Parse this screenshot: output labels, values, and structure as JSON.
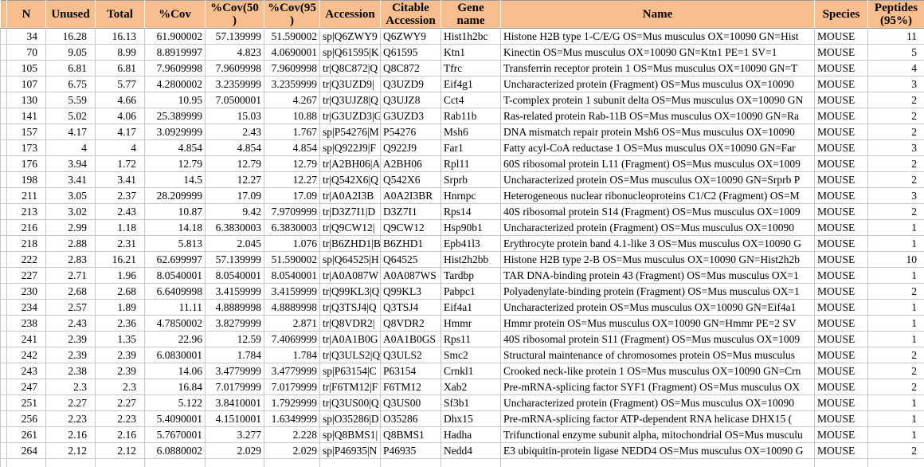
{
  "colors": {
    "header_bg": "#f9be8e",
    "grid": "#c6c6c6",
    "header_border": "#9b9b9b",
    "text": "#000000",
    "row_bg": "#ffffff"
  },
  "table": {
    "columns": [
      {
        "label": "N"
      },
      {
        "label": "Unused"
      },
      {
        "label": "Total"
      },
      {
        "label": "%Cov"
      },
      {
        "label": "%Cov(50)"
      },
      {
        "label": "%Cov(95)"
      },
      {
        "label": "Accession"
      },
      {
        "label": "Citable Accession"
      },
      {
        "label": "Gene name"
      },
      {
        "label": "Name"
      },
      {
        "label": "Species"
      },
      {
        "label": "Peptides (95%)"
      }
    ],
    "rows": [
      [
        "34",
        "16.28",
        "16.13",
        "61.900002",
        "57.139999",
        "51.590002",
        "sp|Q6ZWY9",
        "Q6ZWY9",
        "Hist1h2bc",
        "Histone H2B type 1-C/E/G OS=Mus musculus OX=10090 GN=Hist",
        "MOUSE",
        "11"
      ],
      [
        "70",
        "9.05",
        "8.99",
        "8.8919997",
        "4.823",
        "4.0690001",
        "sp|Q61595|K",
        "Q61595",
        "Ktn1",
        "Kinectin OS=Mus musculus OX=10090 GN=Ktn1 PE=1 SV=1",
        "MOUSE",
        "5"
      ],
      [
        "105",
        "6.81",
        "6.81",
        "7.9609998",
        "7.9609998",
        "7.9609998",
        "tr|Q8C872|Q",
        "Q8C872",
        "Tfrc",
        "Transferrin receptor protein 1 OS=Mus musculus OX=10090 GN=T",
        "MOUSE",
        "4"
      ],
      [
        "107",
        "6.75",
        "5.77",
        "4.2800002",
        "3.2359999",
        "3.2359999",
        "tr|Q3UZD9|",
        "Q3UZD9",
        "Eif4g1",
        "Uncharacterized protein (Fragment) OS=Mus musculus OX=10090",
        "MOUSE",
        "3"
      ],
      [
        "130",
        "5.59",
        "4.66",
        "10.95",
        "7.0500001",
        "4.267",
        "tr|Q3UJZ8|Q",
        "Q3UJZ8",
        "Cct4",
        "T-complex protein 1 subunit delta OS=Mus musculus OX=10090 GN",
        "MOUSE",
        "2"
      ],
      [
        "141",
        "5.02",
        "4.06",
        "25.389999",
        "15.03",
        "10.88",
        "tr|G3UZD3|G",
        "G3UZD3",
        "Rab11b",
        "Ras-related protein Rab-11B OS=Mus musculus OX=10090 GN=Ra",
        "MOUSE",
        "2"
      ],
      [
        "157",
        "4.17",
        "4.17",
        "3.0929999",
        "2.43",
        "1.767",
        "sp|P54276|M",
        "P54276",
        "Msh6",
        "DNA mismatch repair protein Msh6 OS=Mus musculus OX=10090",
        "MOUSE",
        "2"
      ],
      [
        "173",
        "4",
        "4",
        "4.854",
        "4.854",
        "4.854",
        "sp|Q922J9|F",
        "Q922J9",
        "Far1",
        "Fatty acyl-CoA reductase 1 OS=Mus musculus OX=10090 GN=Far",
        "MOUSE",
        "3"
      ],
      [
        "176",
        "3.94",
        "1.72",
        "12.79",
        "12.79",
        "12.79",
        "tr|A2BH06|A",
        "A2BH06",
        "Rpl11",
        "60S ribosomal protein L11 (Fragment) OS=Mus musculus OX=1009",
        "MOUSE",
        "2"
      ],
      [
        "198",
        "3.41",
        "3.41",
        "14.5",
        "12.27",
        "12.27",
        "tr|Q542X6|Q",
        "Q542X6",
        "Srprb",
        "Uncharacterized protein OS=Mus musculus OX=10090 GN=Srprb P",
        "MOUSE",
        "2"
      ],
      [
        "211",
        "3.05",
        "2.37",
        "28.209999",
        "17.09",
        "17.09",
        "tr|A0A2I3B",
        "A0A2I3BR",
        "Hnrnpc",
        "Heterogeneous nuclear ribonucleoproteins C1/C2 (Fragment) OS=M",
        "MOUSE",
        "3"
      ],
      [
        "213",
        "3.02",
        "2.43",
        "10.87",
        "9.42",
        "7.9709999",
        "tr|D3Z7I1|D",
        "D3Z7I1",
        "Rps14",
        "40S ribosomal protein S14 (Fragment) OS=Mus musculus OX=1009",
        "MOUSE",
        "2"
      ],
      [
        "216",
        "2.99",
        "1.18",
        "14.18",
        "6.3830003",
        "6.3830003",
        "tr|Q9CW12|",
        "Q9CW12",
        "Hsp90b1",
        "Uncharacterized protein (Fragment) OS=Mus musculus OX=10090",
        "MOUSE",
        "1"
      ],
      [
        "218",
        "2.88",
        "2.31",
        "5.813",
        "2.045",
        "1.076",
        "tr|B6ZHD1|B",
        "B6ZHD1",
        "Epb41l3",
        "Erythrocyte protein band 4.1-like 3 OS=Mus musculus OX=10090 G",
        "MOUSE",
        "1"
      ],
      [
        "222",
        "2.83",
        "16.21",
        "62.699997",
        "57.139999",
        "51.590002",
        "sp|Q64525|H",
        "Q64525",
        "Hist2h2bb",
        "Histone H2B type 2-B OS=Mus musculus OX=10090 GN=Hist2h2b",
        "MOUSE",
        "10"
      ],
      [
        "227",
        "2.71",
        "1.96",
        "8.0540001",
        "8.0540001",
        "8.0540001",
        "tr|A0A087W",
        "A0A087WS",
        "Tardbp",
        "TAR DNA-binding protein 43 (Fragment) OS=Mus musculus OX=1",
        "MOUSE",
        "1"
      ],
      [
        "230",
        "2.68",
        "2.68",
        "6.6409998",
        "3.4159999",
        "3.4159999",
        "tr|Q99KL3|Q",
        "Q99KL3",
        "Pabpc1",
        "Polyadenylate-binding protein (Fragment) OS=Mus musculus OX=1",
        "MOUSE",
        "2"
      ],
      [
        "234",
        "2.57",
        "1.89",
        "11.11",
        "4.8889998",
        "4.8889998",
        "tr|Q3TSJ4|Q",
        "Q3TSJ4",
        "Eif4a1",
        "Uncharacterized protein OS=Mus musculus OX=10090 GN=Eif4a1",
        "MOUSE",
        "1"
      ],
      [
        "238",
        "2.43",
        "2.36",
        "4.7850002",
        "3.8279999",
        "2.871",
        "tr|Q8VDR2|",
        "Q8VDR2",
        "Hmmr",
        "Hmmr protein OS=Mus musculus OX=10090 GN=Hmmr PE=2 SV",
        "MOUSE",
        "1"
      ],
      [
        "241",
        "2.39",
        "1.35",
        "22.96",
        "12.59",
        "7.4069999",
        "tr|A0A1B0G",
        "A0A1B0GS",
        "Rps11",
        "40S ribosomal protein S11 (Fragment) OS=Mus musculus OX=1009",
        "MOUSE",
        "1"
      ],
      [
        "242",
        "2.39",
        "2.39",
        "6.0830001",
        "1.784",
        "1.784",
        "tr|Q3ULS2|Q",
        "Q3ULS2",
        "Smc2",
        "Structural maintenance of chromosomes protein OS=Mus musculus",
        "MOUSE",
        "2"
      ],
      [
        "243",
        "2.38",
        "2.39",
        "14.06",
        "3.4779999",
        "3.4779999",
        "sp|P63154|C",
        "P63154",
        "Crnkl1",
        "Crooked neck-like protein 1 OS=Mus musculus OX=10090 GN=Crn",
        "MOUSE",
        "2"
      ],
      [
        "247",
        "2.3",
        "2.3",
        "16.84",
        "7.0179999",
        "7.0179999",
        "tr|F6TM12|F",
        "F6TM12",
        "Xab2",
        "Pre-mRNA-splicing factor SYF1 (Fragment) OS=Mus musculus OX",
        "MOUSE",
        "2"
      ],
      [
        "251",
        "2.27",
        "2.27",
        "5.122",
        "3.8410001",
        "1.7929999",
        "tr|Q3US00|Q",
        "Q3US00",
        "Sf3b1",
        "Uncharacterized protein (Fragment) OS=Mus musculus OX=10090",
        "MOUSE",
        "1"
      ],
      [
        "256",
        "2.23",
        "2.23",
        "5.4090001",
        "4.1510001",
        "1.6349999",
        "sp|O35286|D",
        "O35286",
        "Dhx15",
        "Pre-mRNA-splicing factor ATP-dependent RNA helicase DHX15 (",
        "MOUSE",
        "1"
      ],
      [
        "261",
        "2.16",
        "2.16",
        "5.7670001",
        "3.277",
        "2.228",
        "sp|Q8BMS1|",
        "Q8BMS1",
        "Hadha",
        "Trifunctional enzyme subunit alpha, mitochondrial OS=Mus musculu",
        "MOUSE",
        "1"
      ],
      [
        "264",
        "2.12",
        "2.12",
        "6.0880002",
        "2.029",
        "2.029",
        "sp|P46935|N",
        "P46935",
        "Nedd4",
        "E3 ubiquitin-protein ligase NEDD4 OS=Mus musculus OX=10090 G",
        "MOUSE",
        "2"
      ]
    ]
  }
}
